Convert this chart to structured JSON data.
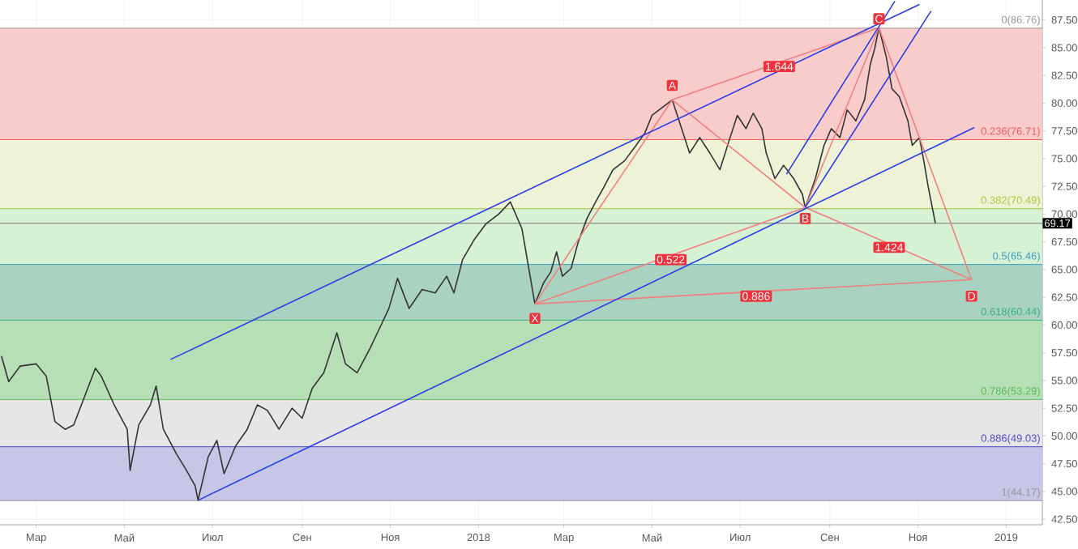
{
  "chart_data": {
    "type": "line",
    "grid": true,
    "xlim": [
      "2017-02-04",
      "2019-01-26"
    ],
    "xticks": [
      {
        "value": "2017-03-01",
        "label": "Мар"
      },
      {
        "value": "2017-05-01",
        "label": "Май"
      },
      {
        "value": "2017-07-01",
        "label": "Июл"
      },
      {
        "value": "2017-09-01",
        "label": "Сен"
      },
      {
        "value": "2017-11-01",
        "label": "Ноя"
      },
      {
        "value": "2018-01-01",
        "label": "2018"
      },
      {
        "value": "2018-03-01",
        "label": "Мар"
      },
      {
        "value": "2018-05-01",
        "label": "Май"
      },
      {
        "value": "2018-07-01",
        "label": "Июл"
      },
      {
        "value": "2018-09-01",
        "label": "Сен"
      },
      {
        "value": "2018-11-01",
        "label": "Ноя"
      },
      {
        "value": "2019-01-01",
        "label": "2019"
      }
    ],
    "ylim": [
      42,
      89.3
    ],
    "yticks": [
      {
        "value": 42.5,
        "label": "42.50"
      },
      {
        "value": 45,
        "label": "45.00"
      },
      {
        "value": 47.5,
        "label": "47.50"
      },
      {
        "value": 50,
        "label": "50.00"
      },
      {
        "value": 52.5,
        "label": "52.50"
      },
      {
        "value": 55,
        "label": "55.00"
      },
      {
        "value": 57.5,
        "label": "57.50"
      },
      {
        "value": 60,
        "label": "60.00"
      },
      {
        "value": 62.5,
        "label": "62.50"
      },
      {
        "value": 65,
        "label": "65.00"
      },
      {
        "value": 67.5,
        "label": "67.50"
      },
      {
        "value": 70,
        "label": "70.00"
      },
      {
        "value": 72.5,
        "label": "72.50"
      },
      {
        "value": 75,
        "label": "75.00"
      },
      {
        "value": 77.5,
        "label": "77.50"
      },
      {
        "value": 80,
        "label": "80.00"
      },
      {
        "value": 82.5,
        "label": "82.50"
      },
      {
        "value": 85,
        "label": "85.00"
      },
      {
        "value": 87.5,
        "label": "87.50"
      }
    ],
    "bands": [
      {
        "axis": "y",
        "from": 76.71,
        "to": 86.76,
        "color": "#f9cccc"
      },
      {
        "axis": "y",
        "from": 70.49,
        "to": 76.71,
        "color": "#eef3d8"
      },
      {
        "axis": "y",
        "from": 65.46,
        "to": 70.49,
        "color": "#d6f1d3"
      },
      {
        "axis": "y",
        "from": 60.44,
        "to": 65.46,
        "color": "#a9d3c0"
      },
      {
        "axis": "y",
        "from": 53.29,
        "to": 60.44,
        "color": "#b6dfb6"
      },
      {
        "axis": "y",
        "from": 49.03,
        "to": 53.29,
        "color": "#e6e6e6"
      },
      {
        "axis": "y",
        "from": 44.17,
        "to": 49.03,
        "color": "#c6c6e6"
      }
    ],
    "ref_lines": [
      {
        "axis": "y",
        "value": 86.76,
        "label": "0(86.76)",
        "color": "#999999"
      },
      {
        "axis": "y",
        "value": 76.71,
        "label": "0.236(76.71)",
        "color": "#f05a5a"
      },
      {
        "axis": "y",
        "value": 70.49,
        "label": "0.382(70.49)",
        "color": "#a8c83a"
      },
      {
        "axis": "y",
        "value": 65.46,
        "label": "0.5(65.46)",
        "color": "#3c9fc0"
      },
      {
        "axis": "y",
        "value": 60.44,
        "label": "0.618(60.44)",
        "color": "#3cae7e"
      },
      {
        "axis": "y",
        "value": 53.29,
        "label": "0.786(53.29)",
        "color": "#5cb85c"
      },
      {
        "axis": "y",
        "value": 49.03,
        "label": "0.886(49.03)",
        "color": "#4848c8"
      },
      {
        "axis": "y",
        "value": 44.17,
        "label": "1(44.17)",
        "color": "#999999"
      },
      {
        "axis": "y",
        "value": 69.17,
        "color": "#777777"
      }
    ],
    "annotations": [
      {
        "text": "X",
        "x": "2018-02-09",
        "y": 60.6
      },
      {
        "text": "A",
        "x": "2018-05-15",
        "y": 81.6
      },
      {
        "text": "B",
        "x": "2018-08-15",
        "y": 69.6
      },
      {
        "text": "C",
        "x": "2018-10-05",
        "y": 87.6
      },
      {
        "text": "D",
        "x": "2018-12-08",
        "y": 62.6
      },
      {
        "text": "1.644",
        "x": "2018-07-28",
        "y": 83.3
      },
      {
        "text": "0.522",
        "x": "2018-05-14",
        "y": 65.9
      },
      {
        "text": "1.424",
        "x": "2018-10-12",
        "y": 67.0
      },
      {
        "text": "0.886",
        "x": "2018-07-12",
        "y": 62.6
      },
      {
        "text": "69.17",
        "x": "2019-01-26",
        "y": 69.17
      }
    ],
    "series": [
      {
        "color": "#333333",
        "x": [
          "2017-02-05",
          "2017-02-10",
          "2017-02-18",
          "2017-03-01",
          "2017-03-08",
          "2017-03-14",
          "2017-03-21",
          "2017-03-27",
          "2017-04-11",
          "2017-04-15",
          "2017-04-24",
          "2017-05-03",
          "2017-05-05",
          "2017-05-11",
          "2017-05-19",
          "2017-05-23",
          "2017-05-28",
          "2017-06-06",
          "2017-06-13",
          "2017-06-19",
          "2017-06-21",
          "2017-06-28",
          "2017-07-04",
          "2017-07-09",
          "2017-07-17",
          "2017-07-25",
          "2017-08-01",
          "2017-08-08",
          "2017-08-16",
          "2017-08-25",
          "2017-09-01",
          "2017-09-08",
          "2017-09-16",
          "2017-09-25",
          "2017-10-01",
          "2017-10-09",
          "2017-10-18",
          "2017-10-26",
          "2017-10-31",
          "2017-11-06",
          "2017-11-14",
          "2017-11-23",
          "2017-12-02",
          "2017-12-10",
          "2017-12-15",
          "2017-12-21",
          "2017-12-29",
          "2018-01-06",
          "2018-01-15",
          "2018-01-23",
          "2018-01-31",
          "2018-02-09",
          "2018-02-15",
          "2018-02-20",
          "2018-02-24",
          "2018-02-28",
          "2018-03-06",
          "2018-03-11",
          "2018-03-17",
          "2018-03-23",
          "2018-03-29",
          "2018-04-04",
          "2018-04-12",
          "2018-04-20",
          "2018-04-26",
          "2018-05-01",
          "2018-05-06",
          "2018-05-15",
          "2018-05-21",
          "2018-05-27",
          "2018-06-03",
          "2018-06-10",
          "2018-06-17",
          "2018-06-24",
          "2018-06-29",
          "2018-07-05",
          "2018-07-10",
          "2018-07-16",
          "2018-07-19",
          "2018-07-25",
          "2018-07-31",
          "2018-08-07",
          "2018-08-13",
          "2018-08-15",
          "2018-08-22",
          "2018-08-28",
          "2018-09-02",
          "2018-09-08",
          "2018-09-13",
          "2018-09-19",
          "2018-09-25",
          "2018-09-29",
          "2018-10-02",
          "2018-10-05",
          "2018-10-10",
          "2018-10-14",
          "2018-10-19",
          "2018-10-25",
          "2018-10-28",
          "2018-11-02",
          "2018-11-05",
          "2018-11-08",
          "2018-11-13"
        ],
        "values": [
          57.2,
          54.9,
          56.3,
          56.5,
          55.4,
          51.3,
          50.6,
          51.0,
          56.1,
          55.4,
          52.8,
          50.6,
          46.9,
          51.0,
          52.8,
          54.5,
          50.6,
          48.4,
          46.9,
          45.5,
          44.2,
          48.1,
          49.6,
          46.6,
          49.1,
          50.6,
          52.8,
          52.3,
          50.6,
          52.5,
          51.6,
          54.3,
          55.7,
          59.3,
          56.5,
          55.7,
          57.9,
          60.1,
          61.5,
          64.2,
          61.5,
          63.2,
          62.9,
          64.4,
          62.9,
          65.9,
          67.7,
          69.1,
          70.0,
          71.1,
          68.7,
          61.9,
          63.8,
          64.8,
          66.6,
          64.4,
          65.1,
          67.5,
          69.6,
          71.1,
          72.5,
          74.0,
          74.8,
          76.2,
          77.3,
          78.9,
          79.4,
          80.3,
          77.9,
          75.5,
          76.9,
          75.5,
          74.0,
          76.9,
          78.9,
          77.7,
          79.1,
          77.7,
          75.5,
          73.2,
          74.4,
          73.2,
          71.8,
          70.6,
          73.2,
          76.2,
          77.7,
          76.9,
          79.4,
          78.4,
          80.3,
          83.5,
          84.9,
          86.8,
          84.2,
          81.3,
          80.6,
          78.4,
          76.2,
          76.9,
          74.8,
          72.5,
          69.17
        ]
      },
      {
        "color": "#f08080",
        "x": [
          "2018-02-09",
          "2018-05-15",
          "2018-08-15",
          "2018-10-05",
          "2018-12-08",
          "2018-08-15",
          "2018-02-09",
          "2018-12-08",
          "2018-10-05",
          "2018-05-15"
        ],
        "values": [
          61.9,
          80.3,
          70.6,
          86.8,
          64.1,
          70.6,
          61.9,
          64.1,
          86.8,
          80.3
        ]
      },
      {
        "color": "#2a3ce6",
        "x": [
          "2017-06-02",
          "2018-11-02"
        ],
        "values": [
          56.9,
          88.9
        ]
      },
      {
        "color": "#2a3ce6",
        "x": [
          "2017-06-21",
          "2018-12-10"
        ],
        "values": [
          44.2,
          77.8
        ]
      },
      {
        "color": "#2a3ce6",
        "x": [
          "2018-08-02",
          "2018-10-16"
        ],
        "values": [
          73.6,
          89.2
        ]
      },
      {
        "color": "#2a3ce6",
        "x": [
          "2018-08-15",
          "2018-11-10"
        ],
        "values": [
          70.6,
          88.3
        ]
      }
    ]
  }
}
